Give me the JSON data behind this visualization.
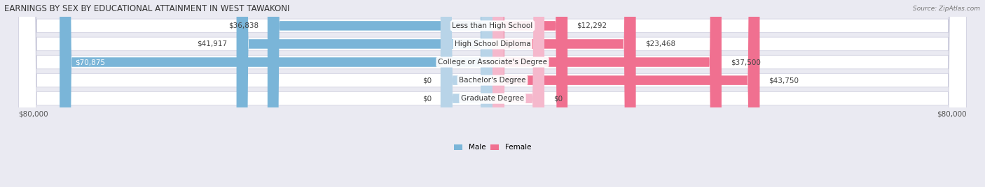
{
  "title": "EARNINGS BY SEX BY EDUCATIONAL ATTAINMENT IN WEST TAWAKONI",
  "source": "Source: ZipAtlas.com",
  "categories": [
    "Less than High School",
    "High School Diploma",
    "College or Associate's Degree",
    "Bachelor's Degree",
    "Graduate Degree"
  ],
  "male_values": [
    36838,
    41917,
    70875,
    0,
    0
  ],
  "female_values": [
    12292,
    23468,
    37500,
    43750,
    0
  ],
  "male_color": "#7ab5d8",
  "female_color": "#f07090",
  "male_stub_color": "#b8d4e8",
  "female_stub_color": "#f5b8cc",
  "max_value": 80000,
  "bg_color": "#eaeaf2",
  "row_bg_color": "#f5f5f8",
  "title_fontsize": 8.5,
  "label_fontsize": 7.5,
  "value_fontsize": 7.5
}
